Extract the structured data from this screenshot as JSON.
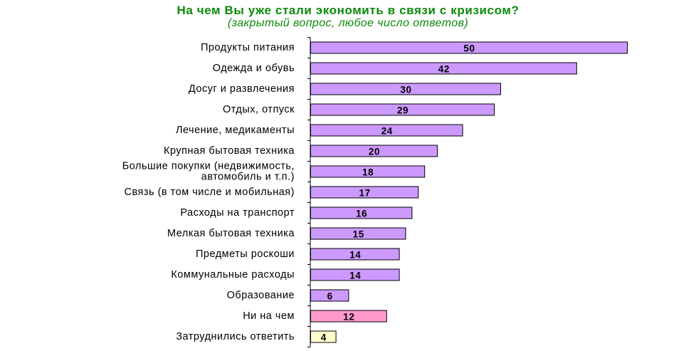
{
  "chart_data": {
    "type": "bar",
    "orientation": "horizontal",
    "title": "На чем Вы уже стали экономить в связи с кризисом?",
    "subtitle": "(закрытый вопрос, любое число ответов)",
    "categories": [
      "Продукты питания",
      "Одежда и обувь",
      "Досуг и развлечения",
      "Отдых, отпуск",
      "Лечение, медикаменты",
      "Крупная бытовая техника",
      "Большие покупки (недвижимость, автомобиль и т.п.)",
      "Связь (в том числе и мобильная)",
      "Расходы на транспорт",
      "Мелкая бытовая техника",
      "Предметы роскоши",
      "Коммунальные расходы",
      "Образование",
      "Ни на чем",
      "Затруднились ответить"
    ],
    "category_lines": [
      [
        "Продукты питания"
      ],
      [
        "Одежда и обувь"
      ],
      [
        "Досуг и развлечения"
      ],
      [
        "Отдых, отпуск"
      ],
      [
        "Лечение, медикаменты"
      ],
      [
        "Крупная бытовая техника"
      ],
      [
        "Большие покупки (недвижимость,",
        "автомобиль и т.п.)"
      ],
      [
        "Связь (в том числе и мобильная)"
      ],
      [
        "Расходы на транспорт"
      ],
      [
        "Мелкая бытовая техника"
      ],
      [
        "Предметы роскоши"
      ],
      [
        "Коммунальные расходы"
      ],
      [
        "Образование"
      ],
      [
        "Ни на чем"
      ],
      [
        "Затруднились ответить"
      ]
    ],
    "values": [
      50,
      42,
      30,
      29,
      24,
      20,
      18,
      17,
      16,
      15,
      14,
      14,
      6,
      12,
      4
    ],
    "value_labels": [
      "50",
      "42",
      "30",
      "29",
      "24",
      "20",
      "18",
      "17",
      "16",
      "15",
      "14",
      "14",
      "6",
      "12",
      "4"
    ],
    "xlim": [
      0,
      50
    ],
    "grid": false,
    "legend": "none",
    "colors": {
      "default": "#cc99ff",
      "none_answer": "#ff99cc",
      "hard_to_say": "#ffffcc",
      "title": "#0a8a0a",
      "border": "#000000"
    },
    "bar_colors": [
      "#cc99ff",
      "#cc99ff",
      "#cc99ff",
      "#cc99ff",
      "#cc99ff",
      "#cc99ff",
      "#cc99ff",
      "#cc99ff",
      "#cc99ff",
      "#cc99ff",
      "#cc99ff",
      "#cc99ff",
      "#cc99ff",
      "#ff99cc",
      "#ffffcc"
    ]
  }
}
